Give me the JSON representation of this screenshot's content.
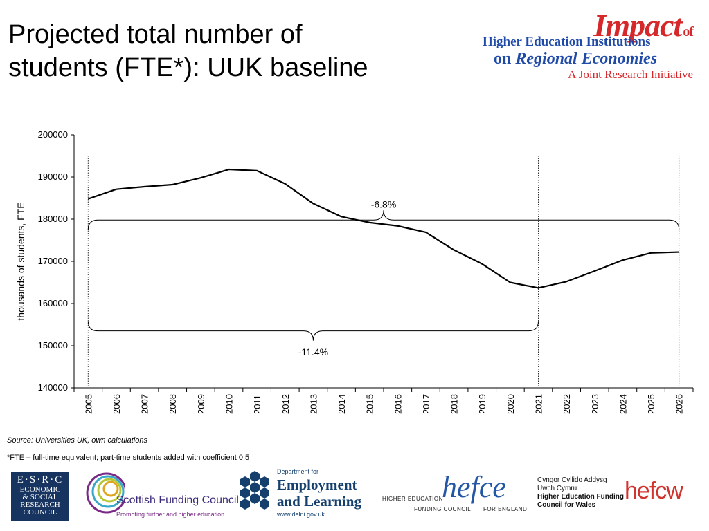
{
  "title": {
    "line1": "Projected total number of",
    "line2": "students (FTE*): UUK baseline"
  },
  "impact_logo": {
    "line1": "Impact",
    "line1_suffix": "of",
    "line2": "Higher Education Institutions",
    "line3_a": "on",
    "line3_b": "Regional Economies",
    "line4": "A Joint Research Initiative",
    "colors": {
      "red": "#d6282b",
      "blue": "#1f4aa8"
    }
  },
  "chart_data": {
    "type": "line",
    "title": "",
    "xlabel": "",
    "ylabel": "thousands of students, FTE",
    "x": [
      "2005",
      "2006",
      "2007",
      "2008",
      "2009",
      "2010",
      "2011",
      "2012",
      "2013",
      "2014",
      "2015",
      "2016",
      "2017",
      "2018",
      "2019",
      "2020",
      "2021",
      "2022",
      "2023",
      "2024",
      "2025",
      "2026"
    ],
    "series": [
      {
        "values": [
          184800,
          187100,
          187700,
          188200,
          189800,
          191800,
          191500,
          188400,
          183700,
          180600,
          179200,
          178400,
          176900,
          172700,
          169400,
          165000,
          163700,
          165200,
          167700,
          170300,
          172000,
          172200
        ],
        "color": "#000000"
      }
    ],
    "ylim": [
      140000,
      200000
    ],
    "yticks": [
      "140000",
      "150000",
      "160000",
      "170000",
      "180000",
      "190000",
      "200000"
    ],
    "grid": false,
    "annotations": [
      {
        "label": "-6.8%",
        "from": "2005",
        "to": "2026",
        "level": 179800,
        "text_at": 183500
      },
      {
        "label": "-11.4%",
        "from": "2005",
        "to": "2021",
        "level": 153500,
        "text_at": 148500
      }
    ],
    "reference_lines": [
      "2005",
      "2021",
      "2026"
    ]
  },
  "notes": {
    "source": "Source: Universities UK, own calculations",
    "footnote": "*FTE – full-time equivalent; part-time students added with coefficient 0.5"
  },
  "logos": {
    "esrc": {
      "line1": "E·S·R·C",
      "line2": "ECONOMIC",
      "line3": "& SOCIAL",
      "line4": "RESEARCH",
      "line5": "COUNCIL"
    },
    "sfc": {
      "name": "Scottish Funding Council",
      "tagline": "Promoting further and higher education"
    },
    "del": {
      "small": "Department for",
      "line1": "Employment",
      "line2": "and Learning",
      "url": "www.delni.gov.uk"
    },
    "hefce": {
      "logo": "hefce",
      "t1": "HIGHER EDUCATION",
      "t2": "FUNDING COUNCIL",
      "t3": "FOR ENGLAND"
    },
    "hefcw": {
      "w1": "Cyngor Cyllido Addysg",
      "w2": "Uwch Cymru",
      "e1": "Higher Education Funding",
      "e2": "Council for Wales",
      "logo": "hefcw"
    }
  }
}
